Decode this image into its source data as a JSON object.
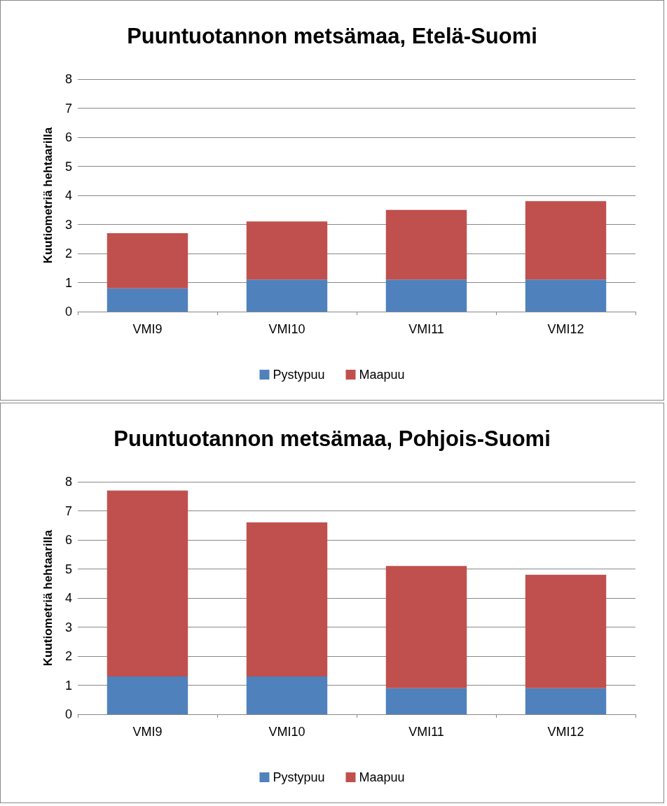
{
  "chart_data": [
    {
      "type": "bar",
      "title": "Puuntuotannon metsämaa, Etelä-Suomi",
      "ylabel": "Kuutiometriä hehtaarilla",
      "categories": [
        "VMI9",
        "VMI10",
        "VMI11",
        "VMI12"
      ],
      "stacked": true,
      "ylim": [
        0,
        8
      ],
      "yticks": [
        0,
        1,
        2,
        3,
        4,
        5,
        6,
        7,
        8
      ],
      "grid": "y",
      "legend": "bottom",
      "series": [
        {
          "name": "Pystypuu",
          "color": "#4f81bd",
          "values": [
            0.8,
            1.1,
            1.1,
            1.1
          ]
        },
        {
          "name": "Maapuu",
          "color": "#c0504d",
          "values": [
            1.9,
            2.0,
            2.4,
            2.7
          ]
        }
      ]
    },
    {
      "type": "bar",
      "title": "Puuntuotannon metsämaa, Pohjois-Suomi",
      "ylabel": "Kuutiometriä hehtaarilla",
      "categories": [
        "VMI9",
        "VMI10",
        "VMI11",
        "VMI12"
      ],
      "stacked": true,
      "ylim": [
        0,
        8
      ],
      "yticks": [
        0,
        1,
        2,
        3,
        4,
        5,
        6,
        7,
        8
      ],
      "grid": "y",
      "legend": "bottom",
      "series": [
        {
          "name": "Pystypuu",
          "color": "#4f81bd",
          "values": [
            1.3,
            1.3,
            0.9,
            0.9
          ]
        },
        {
          "name": "Maapuu",
          "color": "#c0504d",
          "values": [
            6.4,
            5.3,
            4.2,
            3.9
          ]
        }
      ]
    }
  ]
}
